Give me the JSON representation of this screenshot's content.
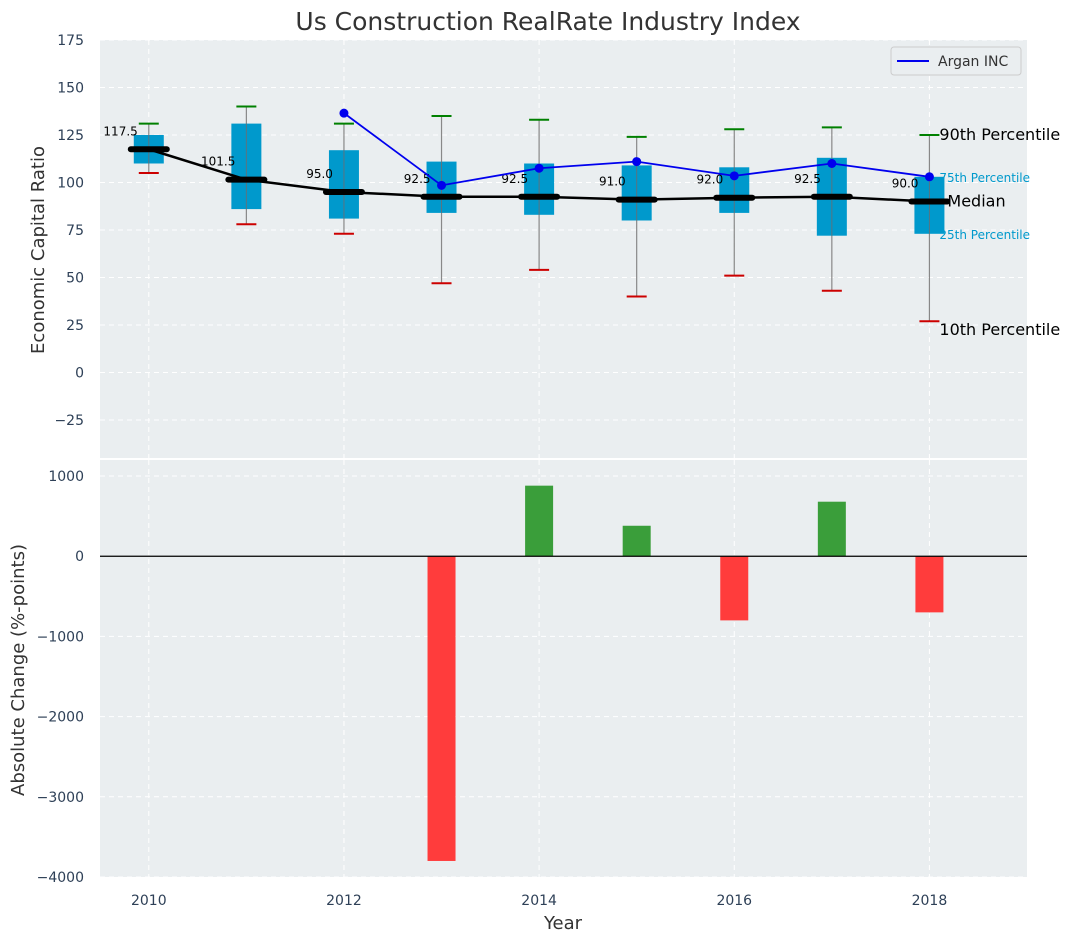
{
  "chart_data": [
    {
      "type": "box",
      "title": "Us Construction RealRate Industry Index",
      "xlabel": "",
      "ylabel": "Economic Capital Ratio",
      "ylim": [
        -45,
        175
      ],
      "yticks": [
        -25,
        0,
        25,
        50,
        75,
        100,
        125,
        150,
        175
      ],
      "grid": true,
      "categories": [
        2010,
        2011,
        2012,
        2013,
        2014,
        2015,
        2016,
        2017,
        2018
      ],
      "p10": [
        105,
        78,
        73,
        47,
        54,
        40,
        51,
        43,
        27
      ],
      "p25": [
        110,
        86,
        81,
        84,
        83,
        80,
        84,
        72,
        73
      ],
      "median": [
        117.5,
        101.5,
        95.0,
        92.5,
        92.5,
        91.0,
        92.0,
        92.5,
        90.0
      ],
      "p75": [
        125,
        131,
        117,
        111,
        110,
        109,
        108,
        113,
        103
      ],
      "p90": [
        131,
        140,
        131,
        135,
        133,
        124,
        128,
        129,
        125
      ],
      "median_labels": [
        "117.5",
        "101.5",
        "95.0",
        "92.5",
        "92.5",
        "91.0",
        "92.0",
        "92.5",
        "90.0"
      ],
      "series": [
        {
          "name": "Argan INC",
          "x": [
            2012,
            2013,
            2014,
            2015,
            2016,
            2017,
            2018
          ],
          "values": [
            136.5,
            98.5,
            107.5,
            111,
            103.5,
            110,
            103
          ]
        }
      ],
      "legend": {
        "entries": [
          "Argan INC"
        ],
        "placement": "top-right"
      },
      "annotations": {
        "p90": "90th Percentile",
        "p75": "75th Percentile",
        "median": "Median",
        "p25": "25th Percentile",
        "p10": "10th Percentile"
      },
      "colors": {
        "box": "#0099cc",
        "median": "#000000",
        "p90_cap": "#008000",
        "p10_cap": "#cc0000",
        "series": "#0000ee",
        "annotation_quartile": "#0099cc"
      }
    },
    {
      "type": "bar",
      "xlabel": "Year",
      "ylabel": "Absolute Change (%-points)",
      "ylim": [
        -4000,
        1200
      ],
      "yticks": [
        -4000,
        -3000,
        -2000,
        -1000,
        0,
        1000
      ],
      "xlim": [
        2009.5,
        2019
      ],
      "xticks": [
        2010,
        2012,
        2014,
        2016,
        2018
      ],
      "grid": true,
      "x": [
        2013,
        2014,
        2015,
        2016,
        2017,
        2018
      ],
      "values": [
        -3800,
        880,
        380,
        -800,
        680,
        -700
      ],
      "colors": {
        "positive": "#3a9e3a",
        "negative": "#ff3c3c",
        "zero_line": "#000000"
      }
    }
  ]
}
